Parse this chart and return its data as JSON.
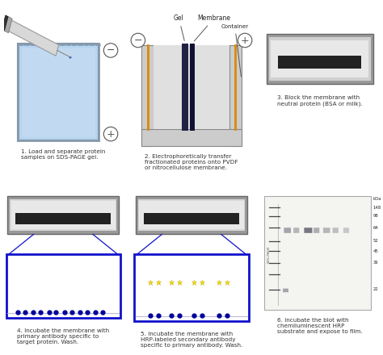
{
  "bg_color": "#ffffff",
  "step1_text": "1. Load and separate protein\nsamples on SDS-PAGE gel.",
  "step2_text": "2. Electrophoretically transfer\nfractionated proteins onto PVDF\nor nitrocellulose membrane.",
  "step3_text": "3. Block the membrane with\nneutral protein (BSA or milk).",
  "step4_text": "4. Incubate the membrane with\nprimary antibody specific to\ntarget protein. Wash.",
  "step5_text": "5. Incubate the membrane with\nHRP-labeled secondary antibody\nspecific to primary antibody. Wash.",
  "step6_text": "6. Incubate the blot with\nchemiluminescent HRP\nsubstrate and expose to film.",
  "gel_fill": "#b8d4ee",
  "gel_border": "#6688aa",
  "membrane_fill": "#d0d8e0",
  "membrane_border": "#777777",
  "blue_box_color": "#1111cc",
  "ab_primary_color": "#aa5533",
  "ab_secondary_color": "#336644",
  "antigen_color": "#000099",
  "text_color": "#333333",
  "orange_color": "#dd8800",
  "marker_band_color": "#444444",
  "blot_bg": "#f4f4f0",
  "blot_border": "#aaaaaa"
}
